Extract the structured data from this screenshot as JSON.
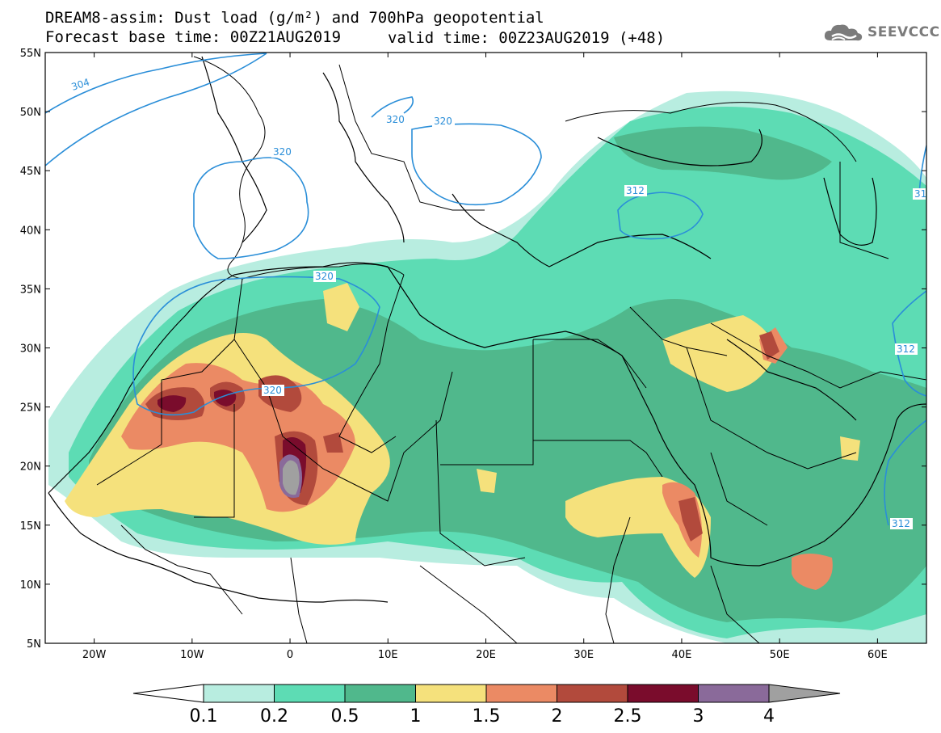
{
  "header": {
    "title_line1": "DREAM8-assim: Dust load (g/m²) and 700hPa geopotential",
    "title_line2_left": "Forecast base time: 00Z21AUG2019",
    "title_line2_right": "valid time: 00Z23AUG2019 (+48)",
    "logo_text": "SEEVCCC",
    "logo_icon": "cloud-icon"
  },
  "map": {
    "lon_range": [
      -25,
      65
    ],
    "lat_range": [
      5,
      55
    ],
    "lat_labels": [
      "55N",
      "50N",
      "45N",
      "40N",
      "35N",
      "30N",
      "25N",
      "20N",
      "15N",
      "10N",
      "5N"
    ],
    "lon_labels": [
      "20W",
      "10W",
      "0",
      "10E",
      "20E",
      "30E",
      "40E",
      "50E",
      "60E"
    ],
    "contour_labels": [
      "304",
      "320",
      "320",
      "320",
      "320",
      "312",
      "312",
      "312",
      "31"
    ],
    "contour_color": "#2a8ed8"
  },
  "colorbar": {
    "levels": [
      "0.1",
      "0.2",
      "0.5",
      "1",
      "1.5",
      "2",
      "2.5",
      "3",
      "4"
    ],
    "colors": [
      "#b8ede0",
      "#5ddcb4",
      "#50b88c",
      "#f5e17c",
      "#eb8a64",
      "#b24a3c",
      "#7a0c2c",
      "#8a6a9a",
      "#a0a0a0"
    ]
  },
  "fields": {
    "c1": "#b8ede0",
    "c2": "#5ddcb4",
    "c3": "#50b88c",
    "c4": "#f5e17c",
    "c5": "#eb8a64",
    "c6": "#b24a3c",
    "c7": "#7a0c2c",
    "c8": "#8a6a9a",
    "c9": "#a0a0a0"
  }
}
